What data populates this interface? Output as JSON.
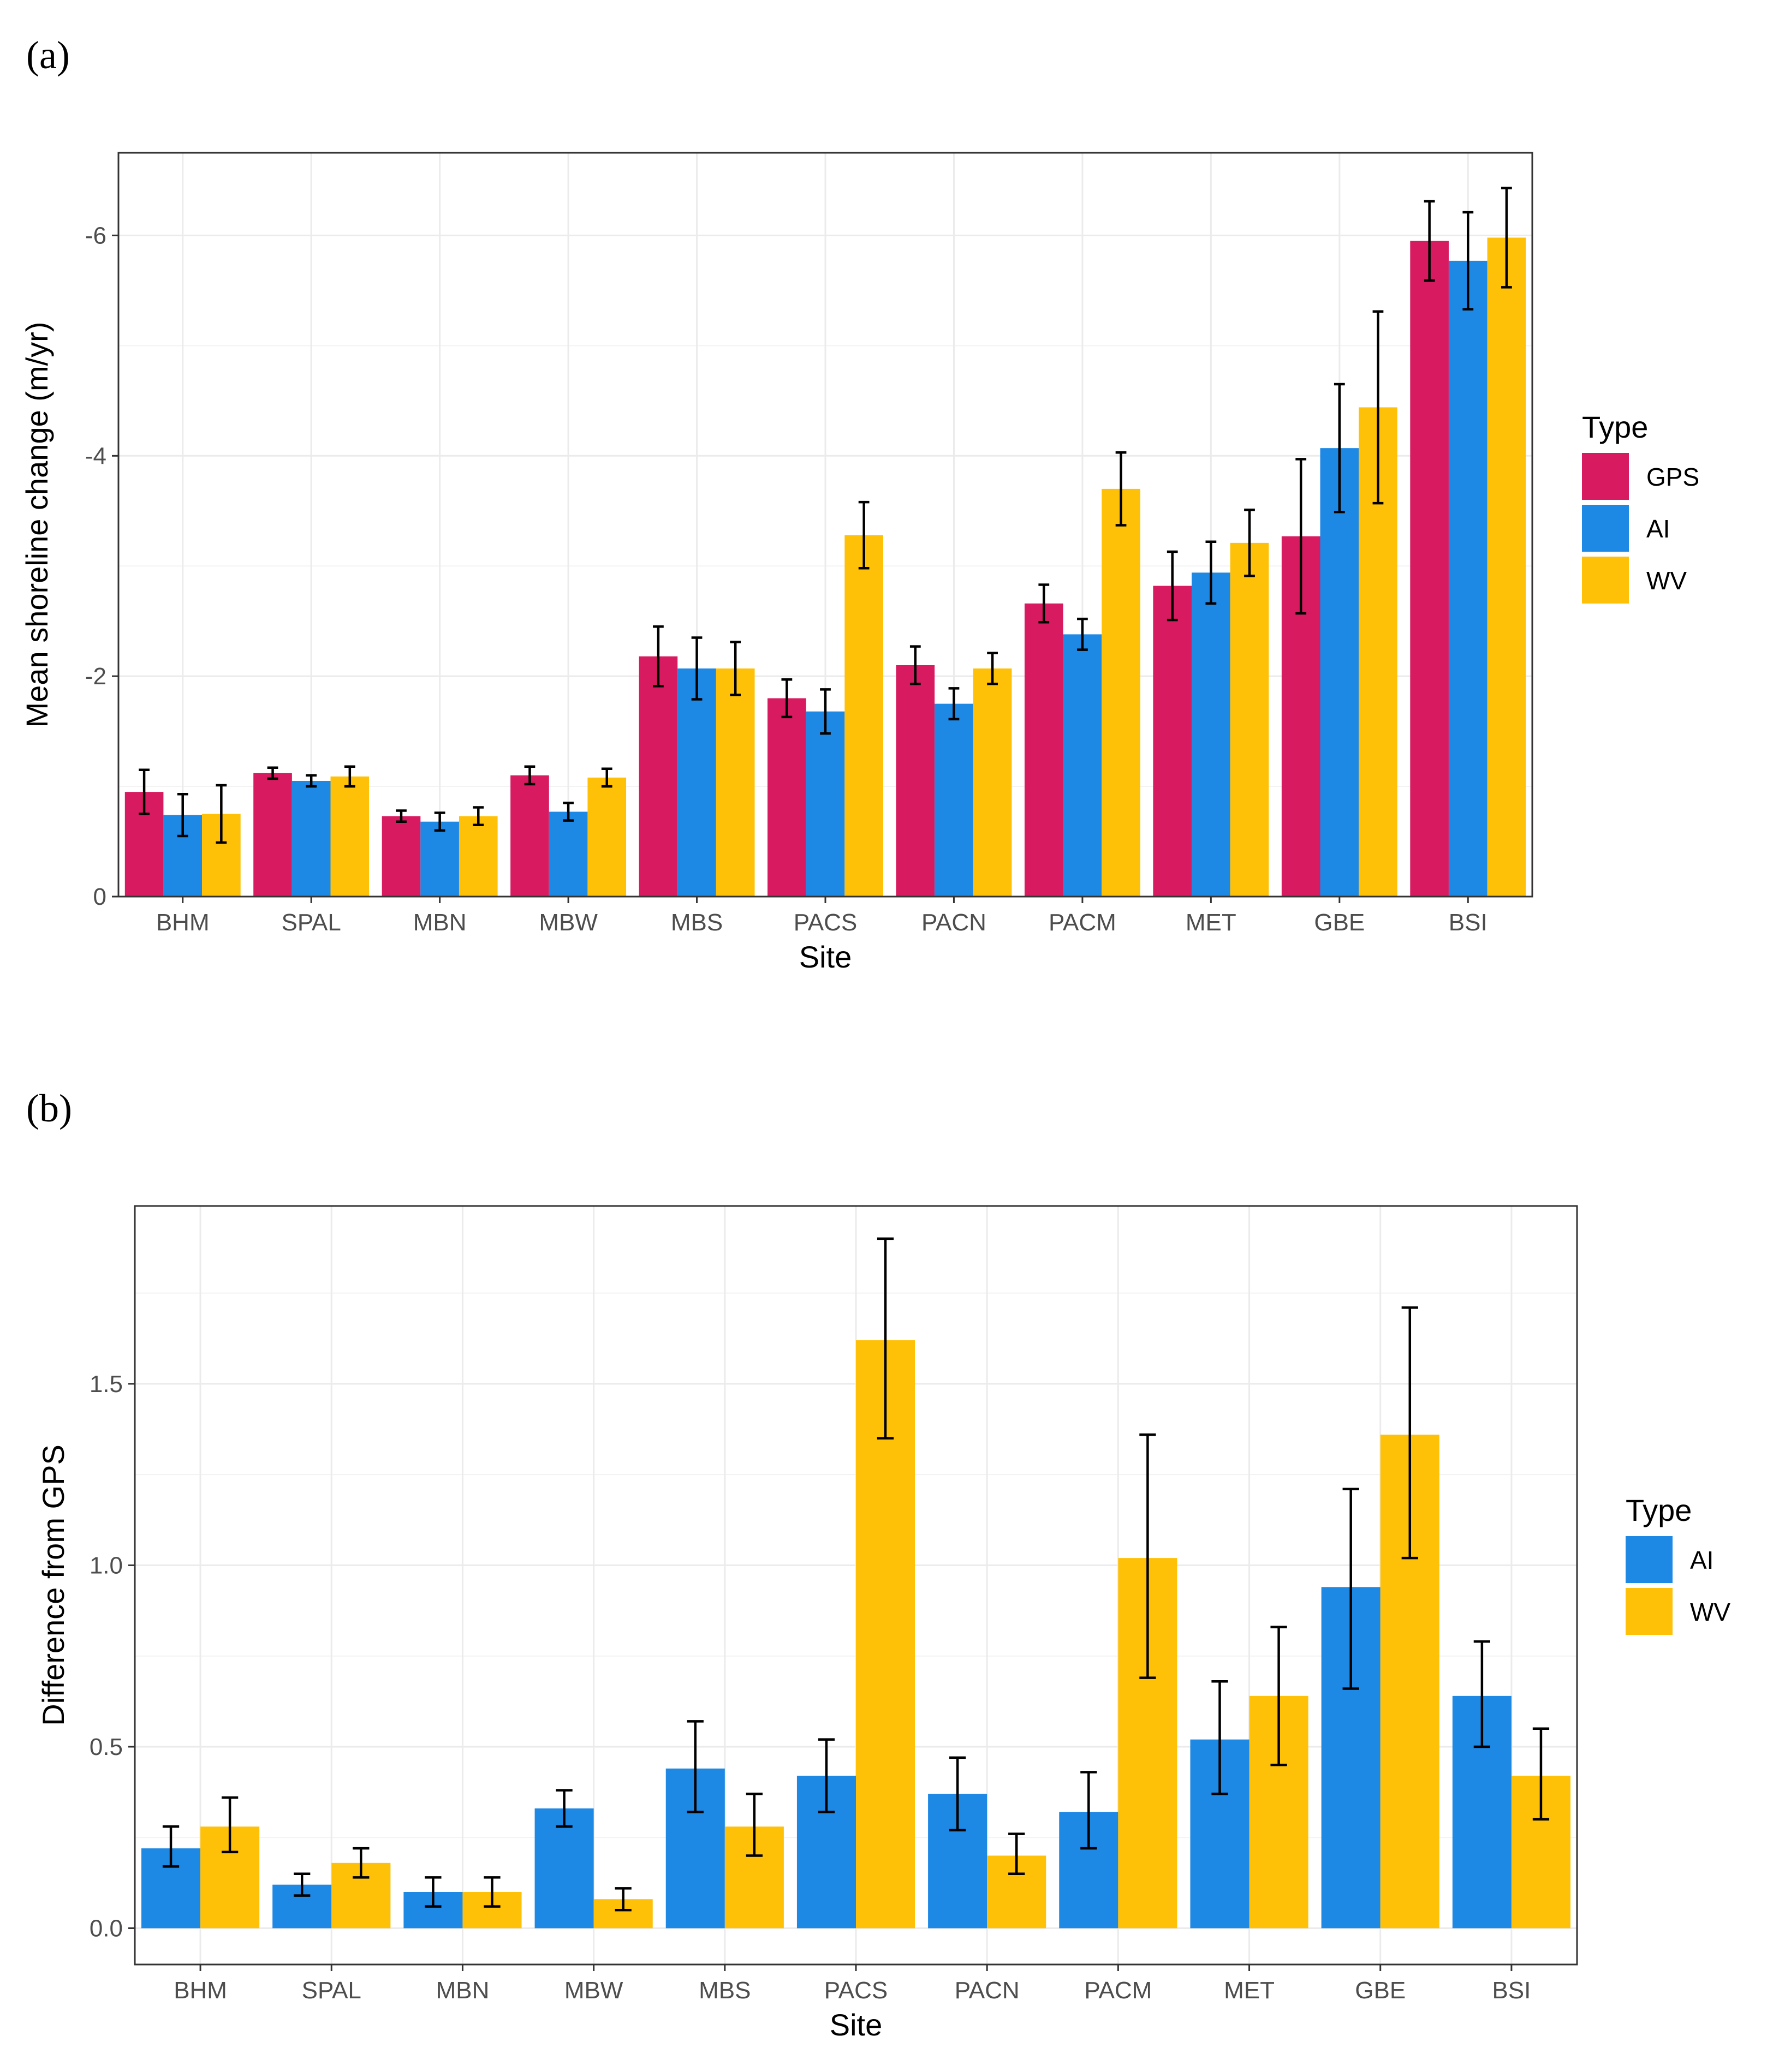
{
  "colors": {
    "GPS": "#d81b60",
    "AI": "#1e88e5",
    "WV": "#ffc107"
  },
  "chart_data": [
    {
      "panel_label": "(a)",
      "type": "bar",
      "xlabel": "Site",
      "ylabel": "Mean shoreline change (m/yr)",
      "y_reversed": true,
      "ylim": [
        0,
        -6.75
      ],
      "yticks": [
        0,
        -2,
        -4,
        -6
      ],
      "ytick_labels": [
        "0",
        "-2",
        "-4",
        "-6"
      ],
      "legend_title": "Type",
      "legend_position": "right",
      "categories": [
        "BHM",
        "SPAL",
        "MBN",
        "MBW",
        "MBS",
        "PACS",
        "PACN",
        "PACM",
        "MET",
        "GBE",
        "BSI"
      ],
      "series": [
        {
          "name": "GPS",
          "values": [
            -0.95,
            -1.12,
            -0.73,
            -1.1,
            -2.18,
            -1.8,
            -2.1,
            -2.66,
            -2.82,
            -3.27,
            -5.95
          ],
          "err_low": [
            -0.75,
            -1.07,
            -0.68,
            -1.02,
            -1.91,
            -1.63,
            -1.93,
            -2.49,
            -2.51,
            -2.57,
            -5.59
          ],
          "err_high": [
            -1.15,
            -1.17,
            -0.78,
            -1.18,
            -2.45,
            -1.97,
            -2.27,
            -2.83,
            -3.13,
            -3.97,
            -6.31
          ]
        },
        {
          "name": "AI",
          "values": [
            -0.74,
            -1.05,
            -0.68,
            -0.77,
            -2.07,
            -1.68,
            -1.75,
            -2.38,
            -2.94,
            -4.07,
            -5.77
          ],
          "err_low": [
            -0.55,
            -1.0,
            -0.6,
            -0.69,
            -1.79,
            -1.48,
            -1.61,
            -2.24,
            -2.66,
            -3.49,
            -5.33
          ],
          "err_high": [
            -0.93,
            -1.1,
            -0.76,
            -0.85,
            -2.35,
            -1.88,
            -1.89,
            -2.52,
            -3.22,
            -4.65,
            -6.21
          ]
        },
        {
          "name": "WV",
          "values": [
            -0.75,
            -1.09,
            -0.73,
            -1.08,
            -2.07,
            -3.28,
            -2.07,
            -3.7,
            -3.21,
            -4.44,
            -5.98
          ],
          "err_low": [
            -0.49,
            -1.0,
            -0.65,
            -1.0,
            -1.83,
            -2.98,
            -1.93,
            -3.37,
            -2.91,
            -3.57,
            -5.53
          ],
          "err_high": [
            -1.01,
            -1.18,
            -0.81,
            -1.16,
            -2.31,
            -3.58,
            -2.21,
            -4.03,
            -3.51,
            -5.31,
            -6.43
          ]
        }
      ]
    },
    {
      "panel_label": "(b)",
      "type": "bar",
      "xlabel": "Site",
      "ylabel": "Difference from GPS",
      "y_reversed": false,
      "ylim": [
        -0.1,
        1.99
      ],
      "yticks": [
        0,
        0.5,
        1.0,
        1.5
      ],
      "ytick_labels": [
        "0.0",
        "0.5",
        "1.0",
        "1.5"
      ],
      "legend_title": "Type",
      "legend_position": "right",
      "categories": [
        "BHM",
        "SPAL",
        "MBN",
        "MBW",
        "MBS",
        "PACS",
        "PACN",
        "PACM",
        "MET",
        "GBE",
        "BSI"
      ],
      "series": [
        {
          "name": "AI",
          "values": [
            0.22,
            0.12,
            0.1,
            0.33,
            0.44,
            0.42,
            0.37,
            0.32,
            0.52,
            0.94,
            0.64
          ],
          "err_low": [
            0.17,
            0.09,
            0.06,
            0.28,
            0.32,
            0.32,
            0.27,
            0.22,
            0.37,
            0.66,
            0.5
          ],
          "err_high": [
            0.28,
            0.15,
            0.14,
            0.38,
            0.57,
            0.52,
            0.47,
            0.43,
            0.68,
            1.21,
            0.79
          ]
        },
        {
          "name": "WV",
          "values": [
            0.28,
            0.18,
            0.1,
            0.08,
            0.28,
            1.62,
            0.2,
            1.02,
            0.64,
            1.36,
            0.42
          ],
          "err_low": [
            0.21,
            0.14,
            0.06,
            0.05,
            0.2,
            1.35,
            0.15,
            0.69,
            0.45,
            1.02,
            0.3
          ],
          "err_high": [
            0.36,
            0.22,
            0.14,
            0.11,
            0.37,
            1.9,
            0.26,
            1.36,
            0.83,
            1.71,
            0.55
          ]
        }
      ]
    }
  ]
}
